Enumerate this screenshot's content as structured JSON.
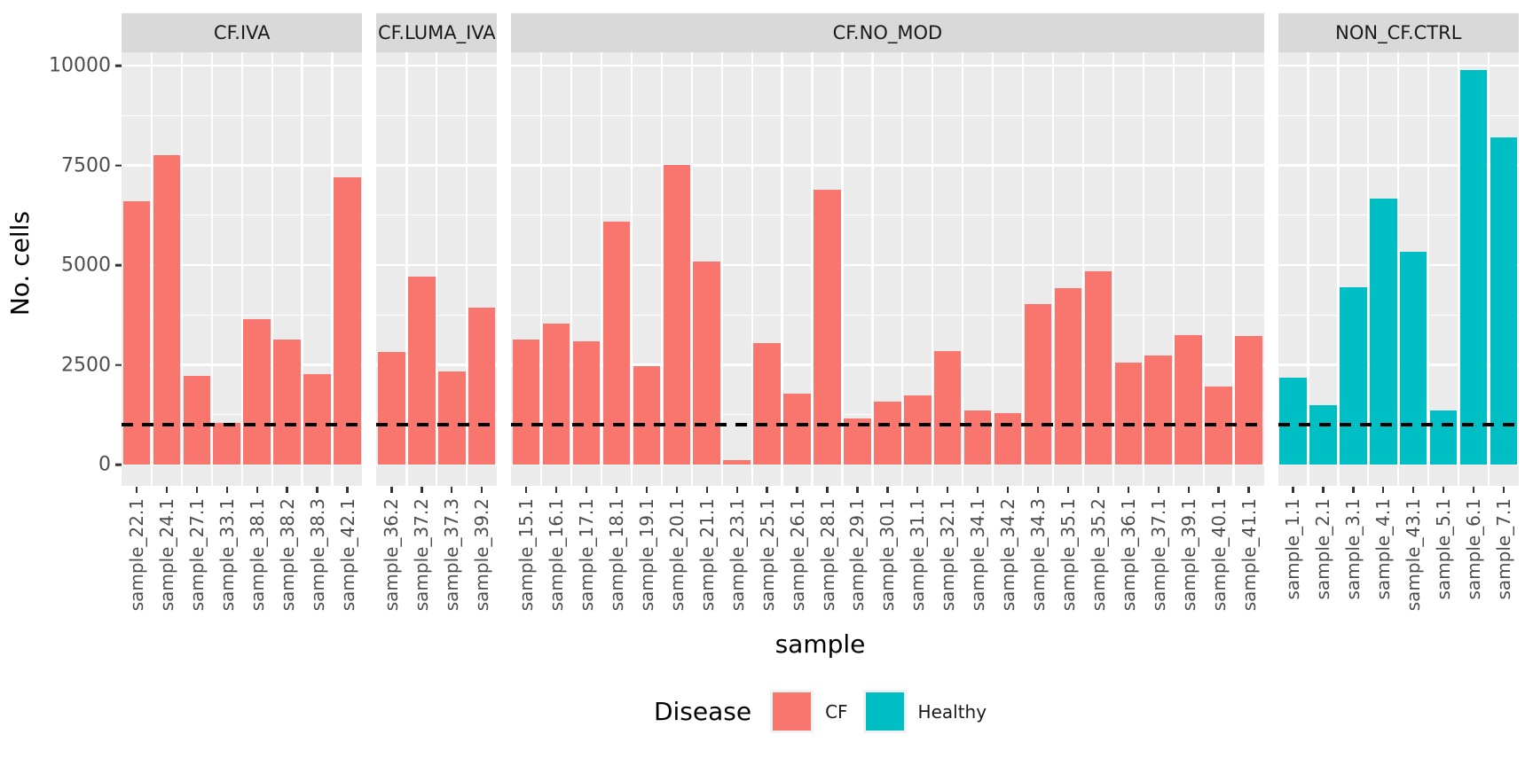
{
  "style": {
    "background": "#FFFFFF",
    "panel_bg": "#EBEBEB",
    "strip_bg": "#D9D9D9",
    "grid_color": "#FFFFFF",
    "axis_text_color": "#4D4D4D",
    "title_color": "#000000",
    "cf_color": "#F8766D",
    "healthy_color": "#00BFC4"
  },
  "chart_data": {
    "type": "bar",
    "title": "",
    "xlabel": "sample",
    "ylabel": "No. cells",
    "ylim": [
      0,
      10000
    ],
    "y_ticks": [
      0,
      2500,
      5000,
      7500,
      10000
    ],
    "y_minor_ticks": [
      1250,
      3750,
      6250,
      8750
    ],
    "grid": true,
    "hline": {
      "value": 1000,
      "style": "dashed",
      "color": "#000000"
    },
    "legend": {
      "title": "Disease",
      "position": "bottom",
      "entries": [
        {
          "label": "CF",
          "color": "#F8766D"
        },
        {
          "label": "Healthy",
          "color": "#00BFC4"
        }
      ]
    },
    "facets": [
      {
        "label": "CF.IVA",
        "group": "CF",
        "color": "#F8766D",
        "categories": [
          "sample_22.1",
          "sample_24.1",
          "sample_27.1",
          "sample_33.1",
          "sample_38.1",
          "sample_38.2",
          "sample_38.3",
          "sample_42.1"
        ],
        "values": [
          6600,
          7750,
          2220,
          1040,
          3640,
          3130,
          2260,
          7210
        ]
      },
      {
        "label": "CF.LUMA_IVA",
        "group": "CF",
        "color": "#F8766D",
        "categories": [
          "sample_36.2",
          "sample_37.2",
          "sample_37.3",
          "sample_39.2"
        ],
        "values": [
          2820,
          4720,
          2330,
          3930
        ]
      },
      {
        "label": "CF.NO_MOD",
        "group": "CF",
        "color": "#F8766D",
        "categories": [
          "sample_15.1",
          "sample_16.1",
          "sample_17.1",
          "sample_18.1",
          "sample_19.1",
          "sample_20.1",
          "sample_21.1",
          "sample_23.1",
          "sample_25.1",
          "sample_26.1",
          "sample_28.1",
          "sample_29.1",
          "sample_30.1",
          "sample_31.1",
          "sample_32.1",
          "sample_34.1",
          "sample_34.2",
          "sample_34.3",
          "sample_35.1",
          "sample_35.2",
          "sample_36.1",
          "sample_37.1",
          "sample_39.1",
          "sample_40.1",
          "sample_41.1"
        ],
        "values": [
          3130,
          3530,
          3080,
          6080,
          2460,
          7520,
          5100,
          120,
          3040,
          1780,
          6880,
          1150,
          1580,
          1730,
          2840,
          1350,
          1290,
          4020,
          4420,
          4840,
          2550,
          2730,
          3240,
          1950,
          3220
        ]
      },
      {
        "label": "NON_CF.CTRL",
        "group": "Healthy",
        "color": "#00BFC4",
        "categories": [
          "sample_1.1",
          "sample_2.1",
          "sample_3.1",
          "sample_4.1",
          "sample_43.1",
          "sample_5.1",
          "sample_6.1",
          "sample_7.1"
        ],
        "values": [
          2180,
          1490,
          4440,
          6660,
          5330,
          1360,
          9900,
          8210
        ]
      }
    ]
  }
}
